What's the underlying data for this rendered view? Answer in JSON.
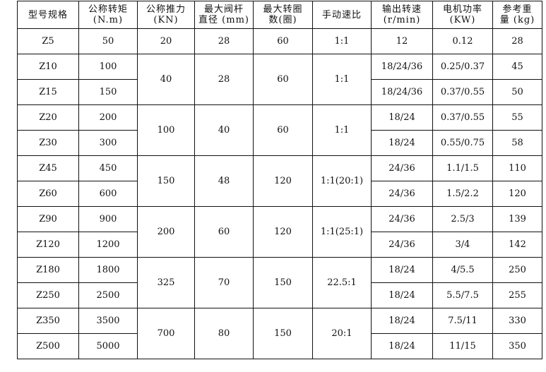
{
  "headers": [
    {
      "l1": "型号规格",
      "l2": ""
    },
    {
      "l1": "公称转矩",
      "l2": "(N.m)"
    },
    {
      "l1": "公称推力",
      "l2": "(KN)"
    },
    {
      "l1": "最大阀杆",
      "l2": "直径 (mm)"
    },
    {
      "l1": "最大转圈",
      "l2": "数(圈)"
    },
    {
      "l1": "手动速比",
      "l2": ""
    },
    {
      "l1": "输出转速",
      "l2": "(r/min)"
    },
    {
      "l1": "电机功率",
      "l2": "(KW)"
    },
    {
      "l1": "参考重",
      "l2": "量 (kg)"
    }
  ],
  "groups": [
    {
      "thrust": "20",
      "stem": "28",
      "turns": "60",
      "ratio": "1:1",
      "rows": [
        {
          "model": "Z5",
          "torque": "50",
          "speed": "12",
          "power": "0.12",
          "weight": "28"
        }
      ]
    },
    {
      "thrust": "40",
      "stem": "28",
      "turns": "60",
      "ratio": "1:1",
      "rows": [
        {
          "model": "Z10",
          "torque": "100",
          "speed": "18/24/36",
          "power": "0.25/0.37",
          "weight": "45"
        },
        {
          "model": "Z15",
          "torque": "150",
          "speed": "18/24/36",
          "power": "0.37/0.55",
          "weight": "50"
        }
      ]
    },
    {
      "thrust": "100",
      "stem": "40",
      "turns": "60",
      "ratio": "1:1",
      "rows": [
        {
          "model": "Z20",
          "torque": "200",
          "speed": "18/24",
          "power": "0.37/0.55",
          "weight": "55"
        },
        {
          "model": "Z30",
          "torque": "300",
          "speed": "18/24",
          "power": "0.55/0.75",
          "weight": "58"
        }
      ]
    },
    {
      "thrust": "150",
      "stem": "48",
      "turns": "120",
      "ratio": "1:1(20:1)",
      "rows": [
        {
          "model": "Z45",
          "torque": "450",
          "speed": "24/36",
          "power": "1.1/1.5",
          "weight": "110"
        },
        {
          "model": "Z60",
          "torque": "600",
          "speed": "24/36",
          "power": "1.5/2.2",
          "weight": "120"
        }
      ]
    },
    {
      "thrust": "200",
      "stem": "60",
      "turns": "120",
      "ratio": "1:1(25:1)",
      "rows": [
        {
          "model": "Z90",
          "torque": "900",
          "speed": "24/36",
          "power": "2.5/3",
          "weight": "139"
        },
        {
          "model": "Z120",
          "torque": "1200",
          "speed": "24/36",
          "power": "3/4",
          "weight": "142"
        }
      ]
    },
    {
      "thrust": "325",
      "stem": "70",
      "turns": "150",
      "ratio": "22.5:1",
      "rows": [
        {
          "model": "Z180",
          "torque": "1800",
          "speed": "18/24",
          "power": "4/5.5",
          "weight": "250"
        },
        {
          "model": "Z250",
          "torque": "2500",
          "speed": "18/24",
          "power": "5.5/7.5",
          "weight": "255"
        }
      ]
    },
    {
      "thrust": "700",
      "stem": "80",
      "turns": "150",
      "ratio": "20:1",
      "rows": [
        {
          "model": "Z350",
          "torque": "3500",
          "speed": "18/24",
          "power": "7.5/11",
          "weight": "330"
        },
        {
          "model": "Z500",
          "torque": "5000",
          "speed": "18/24",
          "power": "11/15",
          "weight": "350"
        }
      ]
    }
  ]
}
